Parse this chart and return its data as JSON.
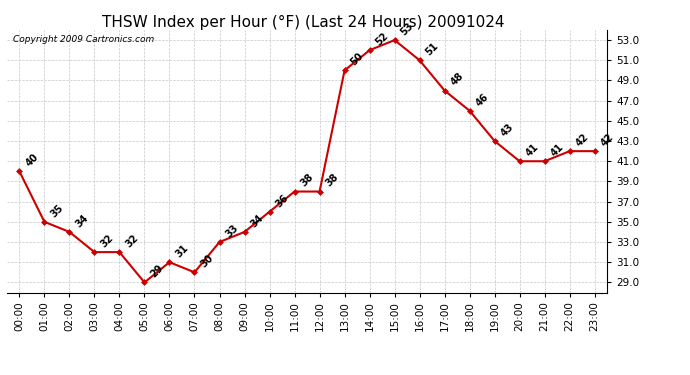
{
  "title": "THSW Index per Hour (°F) (Last 24 Hours) 20091024",
  "copyright": "Copyright 2009 Cartronics.com",
  "hours": [
    0,
    1,
    2,
    3,
    4,
    5,
    6,
    7,
    8,
    9,
    10,
    11,
    12,
    13,
    14,
    15,
    16,
    17,
    18,
    19,
    20,
    21,
    22,
    23
  ],
  "values": [
    40,
    35,
    34,
    32,
    32,
    29,
    31,
    30,
    33,
    34,
    36,
    38,
    38,
    50,
    52,
    53,
    51,
    48,
    46,
    43,
    41,
    41,
    42,
    42
  ],
  "x_labels": [
    "00:00",
    "01:00",
    "02:00",
    "03:00",
    "04:00",
    "05:00",
    "06:00",
    "07:00",
    "08:00",
    "09:00",
    "10:00",
    "11:00",
    "12:00",
    "13:00",
    "14:00",
    "15:00",
    "16:00",
    "17:00",
    "18:00",
    "19:00",
    "20:00",
    "21:00",
    "22:00",
    "23:00"
  ],
  "ylim": [
    28.0,
    54.0
  ],
  "yticks": [
    29.0,
    31.0,
    33.0,
    35.0,
    37.0,
    39.0,
    41.0,
    43.0,
    45.0,
    47.0,
    49.0,
    51.0,
    53.0
  ],
  "line_color": "#cc0000",
  "marker_color": "#cc0000",
  "bg_color": "#ffffff",
  "grid_color": "#c8c8c8",
  "title_fontsize": 11,
  "tick_fontsize": 7.5,
  "annotation_fontsize": 7,
  "copyright_fontsize": 6.5
}
